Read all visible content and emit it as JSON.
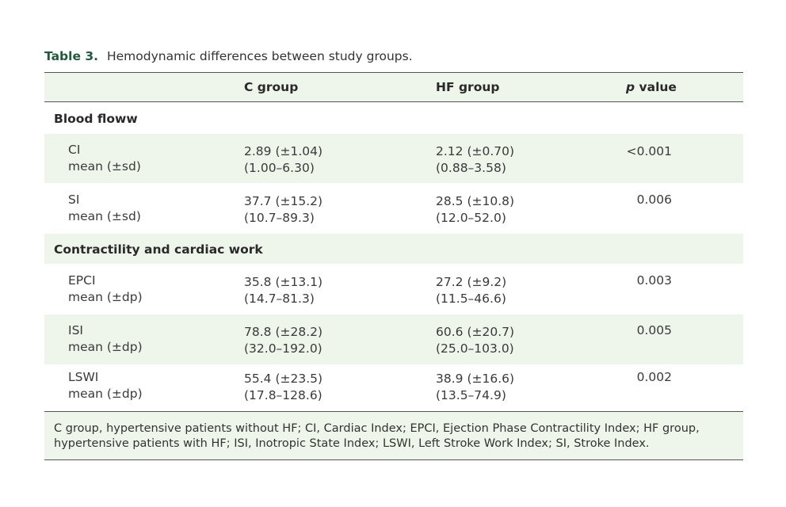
{
  "caption": {
    "label": "Table 3.",
    "text": "Hemodynamic differences between study groups."
  },
  "header": {
    "col_c": "C group",
    "col_hf": "HF group",
    "col_p_italic": "p",
    "col_p_rest": " value"
  },
  "sections": [
    {
      "title": "Blood floww",
      "rows": [
        {
          "name": "CI",
          "stat": "mean (±sd)",
          "c_mean": "2.89 (±1.04)",
          "c_range": "(1.00–6.30)",
          "hf_mean": "2.12 (±0.70)",
          "hf_range": "(0.88–3.58)",
          "p": "<0.001"
        },
        {
          "name": "SI",
          "stat": "mean (±sd)",
          "c_mean": "37.7 (±15.2)",
          "c_range": "(10.7–89.3)",
          "hf_mean": "28.5 (±10.8)",
          "hf_range": "(12.0–52.0)",
          "p": "0.006"
        }
      ]
    },
    {
      "title": "Contractility and cardiac work",
      "rows": [
        {
          "name": "EPCI",
          "stat": "mean (±dp)",
          "c_mean": "35.8 (±13.1)",
          "c_range": "(14.7–81.3)",
          "hf_mean": "27.2 (±9.2)",
          "hf_range": "(11.5–46.6)",
          "p": "0.003"
        },
        {
          "name": "ISI",
          "stat": "mean (±dp)",
          "c_mean": "78.8 (±28.2)",
          "c_range": "(32.0–192.0)",
          "hf_mean": "60.6 (±20.7)",
          "hf_range": "(25.0–103.0)",
          "p": "0.005"
        },
        {
          "name": "LSWI",
          "stat": "mean (±dp)",
          "c_mean": "55.4 (±23.5)",
          "c_range": "(17.8–128.6)",
          "hf_mean": "38.9 (±16.6)",
          "hf_range": "(13.5–74.9)",
          "p": "0.002"
        }
      ]
    }
  ],
  "footnote": "C group, hypertensive patients without HF; CI, Cardiac Index; EPCI, Ejection Phase Contractility Index; HF group, hypertensive patients with HF; ISI, Inotropic State Index; LSWI, Left Stroke Work Index; SI, Stroke Index.",
  "colors": {
    "band": "#eef5ea",
    "caption_label": "#1f5a3e",
    "rule": "#555555"
  }
}
